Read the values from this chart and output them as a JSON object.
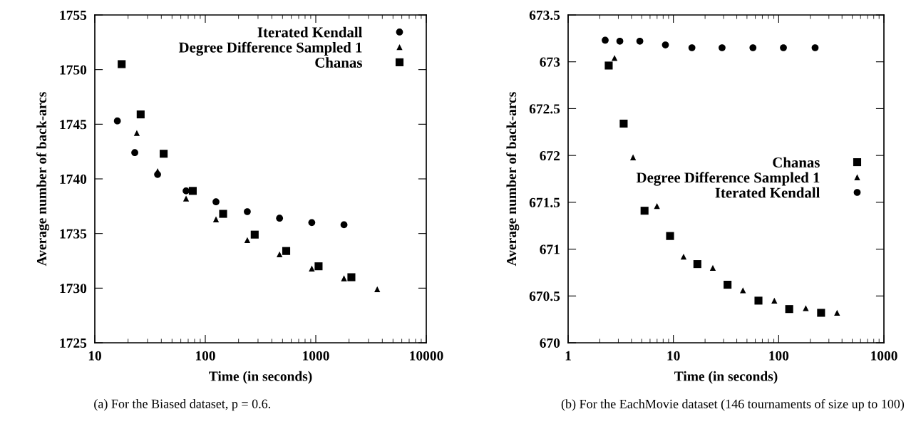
{
  "chart_data": [
    {
      "type": "scatter",
      "xlabel": "Time (in seconds)",
      "ylabel": "Average number of back-arcs",
      "log": "x",
      "xlim": [
        10,
        10000
      ],
      "xticks": [
        10,
        100,
        1000,
        10000
      ],
      "ylim": [
        1725,
        1755
      ],
      "yticks": [
        1725,
        1730,
        1735,
        1740,
        1745,
        1750,
        1755
      ],
      "grid": false,
      "legend": "top right",
      "annotations": [
        "(a) For the Biased dataset, p = 0.6."
      ],
      "series": [
        {
          "name": "Iterated Kendall",
          "color": "#000000",
          "marker": "circle",
          "x": [
            16,
            23,
            37,
            67,
            125,
            240,
            470,
            920,
            1800
          ],
          "values": [
            1745.3,
            1742.4,
            1740.4,
            1738.9,
            1737.9,
            1737.0,
            1736.4,
            1736.0,
            1735.8
          ]
        },
        {
          "name": "Degree Difference Sampled 1",
          "color": "#000000",
          "marker": "triangle",
          "x": [
            24,
            37,
            67,
            125,
            240,
            470,
            920,
            1800,
            3600
          ],
          "values": [
            1744.2,
            1740.7,
            1738.2,
            1736.3,
            1734.4,
            1733.1,
            1731.8,
            1730.9,
            1729.9
          ]
        },
        {
          "name": "Chanas",
          "color": "#000000",
          "marker": "square",
          "x": [
            17.5,
            26,
            42,
            77,
            145,
            280,
            540,
            1060,
            2100
          ],
          "values": [
            1750.5,
            1745.9,
            1742.3,
            1738.9,
            1736.8,
            1734.9,
            1733.4,
            1732.0,
            1731.0
          ]
        }
      ]
    },
    {
      "type": "scatter",
      "xlabel": "Time (in seconds)",
      "ylabel": "Average number of back-arcs",
      "log": "x",
      "xlim": [
        1,
        1000
      ],
      "xticks": [
        1,
        10,
        100,
        1000
      ],
      "ylim": [
        670,
        673.5
      ],
      "yticks": [
        670,
        670.5,
        671,
        671.5,
        672,
        672.5,
        673,
        673.5
      ],
      "grid": false,
      "legend": "right",
      "annotations": [
        "(b) For the EachMovie dataset (146 tournaments of size up to 100)"
      ],
      "series": [
        {
          "name": "Chanas",
          "color": "#000000",
          "marker": "square",
          "x": [
            2.43,
            3.37,
            5.32,
            9.3,
            16.9,
            32.7,
            64.3,
            126,
            253
          ],
          "values": [
            672.96,
            672.34,
            671.41,
            671.14,
            670.84,
            670.62,
            670.45,
            670.36,
            670.32
          ]
        },
        {
          "name": "Degree Difference Sampled 1",
          "color": "#000000",
          "marker": "triangle",
          "x": [
            2.76,
            4.14,
            6.98,
            12.5,
            23.7,
            45.8,
            91,
            181,
            359
          ],
          "values": [
            673.04,
            671.98,
            671.46,
            670.92,
            670.8,
            670.56,
            670.45,
            670.37,
            670.32
          ]
        },
        {
          "name": "Iterated Kendall",
          "color": "#000000",
          "marker": "circle",
          "x": [
            2.25,
            3.1,
            4.8,
            8.4,
            15,
            29,
            57,
            111,
            222
          ],
          "values": [
            673.23,
            673.22,
            673.22,
            673.18,
            673.15,
            673.15,
            673.15,
            673.15,
            673.15
          ]
        }
      ]
    }
  ]
}
